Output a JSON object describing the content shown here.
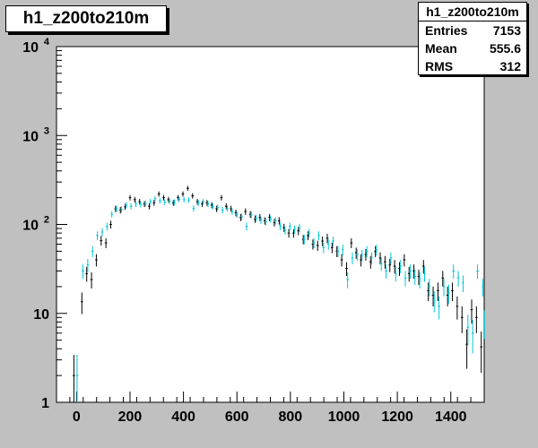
{
  "chart_data": {
    "type": "scatter",
    "title": "h1_z200to210m",
    "stats": {
      "title": "h1_z200to210m",
      "rows": [
        {
          "label": "Entries",
          "value": "7153"
        },
        {
          "label": "Mean",
          "value": "555.6"
        },
        {
          "label": "RMS",
          "value": "312"
        }
      ]
    },
    "x_axis": {
      "range": [
        -75,
        1525
      ],
      "ticks": [
        0,
        200,
        400,
        600,
        800,
        1000,
        1200,
        1400
      ],
      "tick_labels": [
        "0",
        "200",
        "400",
        "600",
        "800",
        "1000",
        "1200",
        "1400"
      ]
    },
    "y_axis": {
      "scale": "log",
      "range": [
        1,
        10000
      ],
      "ticks": [
        1,
        10,
        100,
        1000,
        10000
      ],
      "tick_labels": [
        {
          "base": "1",
          "exp": ""
        },
        {
          "base": "10",
          "exp": ""
        },
        {
          "base": "10",
          "exp": "2"
        },
        {
          "base": "10",
          "exp": "3"
        },
        {
          "base": "10",
          "exp": "4"
        }
      ]
    },
    "bin_width": 18,
    "colors": {
      "series_black": "#000000",
      "series_cyan": "#00c8d6",
      "frame_bg": "#ffffff",
      "canvas_bg": "#c0c0c0"
    },
    "series": [
      {
        "color": "#000000",
        "points": [
          [
            -10,
            2.0
          ],
          [
            20,
            13.5
          ],
          [
            38,
            28
          ],
          [
            56,
            24
          ],
          [
            74,
            40
          ],
          [
            92,
            66
          ],
          [
            110,
            62
          ],
          [
            128,
            100
          ],
          [
            146,
            150
          ],
          [
            164,
            145
          ],
          [
            182,
            158
          ],
          [
            200,
            200
          ],
          [
            218,
            190
          ],
          [
            236,
            180
          ],
          [
            254,
            170
          ],
          [
            272,
            160
          ],
          [
            290,
            175
          ],
          [
            308,
            220
          ],
          [
            326,
            200
          ],
          [
            344,
            190
          ],
          [
            362,
            175
          ],
          [
            380,
            200
          ],
          [
            398,
            220
          ],
          [
            416,
            255
          ],
          [
            434,
            210
          ],
          [
            452,
            180
          ],
          [
            470,
            170
          ],
          [
            488,
            175
          ],
          [
            506,
            165
          ],
          [
            524,
            150
          ],
          [
            542,
            200
          ],
          [
            560,
            160
          ],
          [
            578,
            150
          ],
          [
            596,
            135
          ],
          [
            614,
            120
          ],
          [
            632,
            140
          ],
          [
            650,
            130
          ],
          [
            668,
            115
          ],
          [
            686,
            120
          ],
          [
            704,
            110
          ],
          [
            722,
            120
          ],
          [
            740,
            105
          ],
          [
            758,
            110
          ],
          [
            776,
            92
          ],
          [
            794,
            80
          ],
          [
            812,
            80
          ],
          [
            830,
            85
          ],
          [
            848,
            68
          ],
          [
            866,
            75
          ],
          [
            884,
            60
          ],
          [
            902,
            58
          ],
          [
            920,
            65
          ],
          [
            938,
            70
          ],
          [
            956,
            55
          ],
          [
            974,
            50
          ],
          [
            992,
            40
          ],
          [
            1010,
            32
          ],
          [
            1028,
            62
          ],
          [
            1046,
            48
          ],
          [
            1064,
            40
          ],
          [
            1082,
            46
          ],
          [
            1100,
            38
          ],
          [
            1118,
            50
          ],
          [
            1136,
            42
          ],
          [
            1154,
            38
          ],
          [
            1172,
            35
          ],
          [
            1190,
            34
          ],
          [
            1208,
            32
          ],
          [
            1226,
            40
          ],
          [
            1244,
            28
          ],
          [
            1262,
            30
          ],
          [
            1280,
            26
          ],
          [
            1298,
            34
          ],
          [
            1316,
            18
          ],
          [
            1334,
            16
          ],
          [
            1352,
            18
          ],
          [
            1370,
            25
          ],
          [
            1388,
            16
          ],
          [
            1406,
            18
          ],
          [
            1424,
            12
          ],
          [
            1442,
            9
          ],
          [
            1460,
            4.5
          ],
          [
            1478,
            11
          ],
          [
            1496,
            9
          ],
          [
            1514,
            4.2
          ]
        ]
      },
      {
        "color": "#00c8d6",
        "points": [
          [
            2,
            2.0
          ],
          [
            24,
            30
          ],
          [
            42,
            35
          ],
          [
            60,
            50
          ],
          [
            78,
            75
          ],
          [
            96,
            82
          ],
          [
            114,
            95
          ],
          [
            132,
            130
          ],
          [
            150,
            150
          ],
          [
            168,
            148
          ],
          [
            186,
            165
          ],
          [
            204,
            160
          ],
          [
            222,
            170
          ],
          [
            240,
            168
          ],
          [
            258,
            172
          ],
          [
            276,
            180
          ],
          [
            294,
            195
          ],
          [
            312,
            185
          ],
          [
            330,
            178
          ],
          [
            348,
            182
          ],
          [
            366,
            178
          ],
          [
            384,
            192
          ],
          [
            402,
            190
          ],
          [
            420,
            188
          ],
          [
            438,
            152
          ],
          [
            456,
            175
          ],
          [
            474,
            180
          ],
          [
            492,
            170
          ],
          [
            510,
            160
          ],
          [
            528,
            155
          ],
          [
            546,
            145
          ],
          [
            564,
            152
          ],
          [
            582,
            140
          ],
          [
            600,
            130
          ],
          [
            618,
            122
          ],
          [
            636,
            95
          ],
          [
            654,
            128
          ],
          [
            672,
            118
          ],
          [
            690,
            112
          ],
          [
            708,
            108
          ],
          [
            726,
            115
          ],
          [
            744,
            110
          ],
          [
            762,
            96
          ],
          [
            780,
            86
          ],
          [
            798,
            95
          ],
          [
            816,
            88
          ],
          [
            834,
            92
          ],
          [
            852,
            68
          ],
          [
            870,
            80
          ],
          [
            888,
            62
          ],
          [
            906,
            75
          ],
          [
            924,
            55
          ],
          [
            942,
            60
          ],
          [
            960,
            65
          ],
          [
            978,
            50
          ],
          [
            996,
            52
          ],
          [
            1014,
            24
          ],
          [
            1032,
            42
          ],
          [
            1050,
            46
          ],
          [
            1068,
            45
          ],
          [
            1086,
            50
          ],
          [
            1104,
            42
          ],
          [
            1122,
            52
          ],
          [
            1140,
            36
          ],
          [
            1158,
            30
          ],
          [
            1176,
            42
          ],
          [
            1194,
            28
          ],
          [
            1212,
            34
          ],
          [
            1230,
            25
          ],
          [
            1248,
            30
          ],
          [
            1266,
            26
          ],
          [
            1284,
            24
          ],
          [
            1302,
            28
          ],
          [
            1320,
            20
          ],
          [
            1338,
            14
          ],
          [
            1356,
            12
          ],
          [
            1374,
            20
          ],
          [
            1392,
            17
          ],
          [
            1410,
            30
          ],
          [
            1428,
            25
          ],
          [
            1446,
            22
          ],
          [
            1464,
            7
          ],
          [
            1482,
            6
          ],
          [
            1500,
            30
          ],
          [
            1520,
            20
          ],
          [
            1526,
            8
          ]
        ]
      }
    ]
  }
}
